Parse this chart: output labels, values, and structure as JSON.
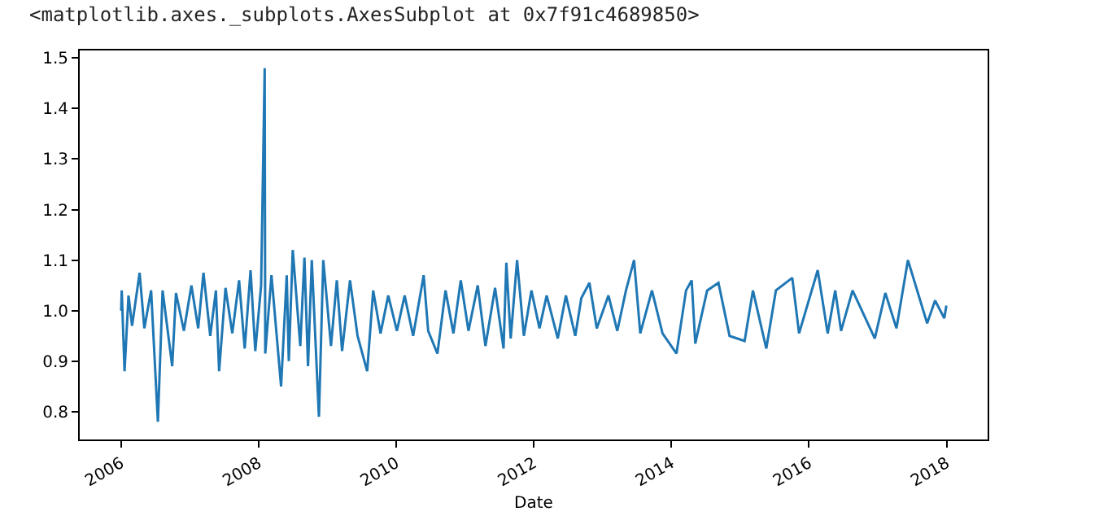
{
  "chart_data": {
    "type": "line",
    "xlabel": "Date",
    "annotations": [
      "<matplotlib.axes._subplots.AxesSubplot at 0x7f91c4689850>"
    ],
    "x": [
      "2006-01-02",
      "2006-01-05",
      "2006-01-20",
      "2006-02-10",
      "2006-03-01",
      "2006-04-10",
      "2006-05-05",
      "2006-06-10",
      "2006-07-16",
      "2006-08-10",
      "2006-09-30",
      "2006-10-20",
      "2006-12-01",
      "2007-01-10",
      "2007-02-15",
      "2007-03-15",
      "2007-04-20",
      "2007-05-20",
      "2007-06-06",
      "2007-07-10",
      "2007-08-15",
      "2007-09-20",
      "2007-10-20",
      "2007-11-20",
      "2007-12-15",
      "2008-01-15",
      "2008-02-03",
      "2008-02-06",
      "2008-03-10",
      "2008-04-30",
      "2008-05-30",
      "2008-06-10",
      "2008-07-01",
      "2008-08-10",
      "2008-09-01",
      "2008-09-20",
      "2008-10-10",
      "2008-11-17",
      "2008-12-10",
      "2009-01-20",
      "2009-02-20",
      "2009-03-20",
      "2009-05-01",
      "2009-06-10",
      "2009-07-31",
      "2009-09-01",
      "2009-10-10",
      "2009-11-20",
      "2010-01-05",
      "2010-02-15",
      "2010-04-01",
      "2010-05-27",
      "2010-06-20",
      "2010-08-08",
      "2010-09-20",
      "2010-11-01",
      "2010-12-10",
      "2011-01-20",
      "2011-03-10",
      "2011-04-20",
      "2011-06-10",
      "2011-07-25",
      "2011-08-09",
      "2011-09-01",
      "2011-10-05",
      "2011-11-10",
      "2011-12-20",
      "2012-02-01",
      "2012-03-10",
      "2012-05-08",
      "2012-06-20",
      "2012-08-09",
      "2012-09-10",
      "2012-10-23",
      "2012-12-01",
      "2013-02-01",
      "2013-03-20",
      "2013-05-05",
      "2013-06-17",
      "2013-07-20",
      "2013-09-20",
      "2013-11-15",
      "2014-01-28",
      "2014-03-20",
      "2014-04-19",
      "2014-05-08",
      "2014-07-10",
      "2014-09-08",
      "2014-11-06",
      "2015-01-25",
      "2015-03-10",
      "2015-05-20",
      "2015-07-10",
      "2015-10-05",
      "2015-11-10",
      "2016-02-17",
      "2016-04-10",
      "2016-05-20",
      "2016-06-20",
      "2016-08-20",
      "2016-12-16",
      "2017-02-10",
      "2017-04-10",
      "2017-06-10",
      "2017-09-20",
      "2017-11-01",
      "2017-12-20",
      "2017-12-31"
    ],
    "values": [
      1.0,
      1.04,
      0.88,
      1.03,
      0.97,
      1.075,
      0.965,
      1.04,
      0.78,
      1.04,
      0.89,
      1.035,
      0.96,
      1.05,
      0.965,
      1.075,
      0.95,
      1.04,
      0.88,
      1.045,
      0.955,
      1.06,
      0.925,
      1.08,
      0.92,
      1.05,
      1.48,
      0.915,
      1.07,
      0.85,
      1.07,
      0.9,
      1.12,
      0.93,
      1.105,
      0.89,
      1.1,
      0.79,
      1.1,
      0.93,
      1.06,
      0.92,
      1.06,
      0.95,
      0.88,
      1.04,
      0.955,
      1.03,
      0.96,
      1.03,
      0.95,
      1.07,
      0.96,
      0.915,
      1.04,
      0.955,
      1.06,
      0.96,
      1.05,
      0.93,
      1.045,
      0.925,
      1.095,
      0.945,
      1.1,
      0.95,
      1.04,
      0.965,
      1.03,
      0.945,
      1.03,
      0.95,
      1.025,
      1.055,
      0.965,
      1.03,
      0.96,
      1.04,
      1.1,
      0.955,
      1.04,
      0.955,
      0.915,
      1.04,
      1.06,
      0.935,
      1.04,
      1.055,
      0.95,
      0.94,
      1.04,
      0.925,
      1.04,
      1.065,
      0.955,
      1.08,
      0.955,
      1.04,
      0.96,
      1.04,
      0.945,
      1.035,
      0.965,
      1.1,
      0.975,
      1.02,
      0.985,
      1.01
    ],
    "color": "#1f77b4",
    "xlim": [
      "2005-05-27",
      "2018-08-07"
    ],
    "xticks": [
      "2006",
      "2008",
      "2010",
      "2012",
      "2014",
      "2016",
      "2018"
    ],
    "ylim": [
      0.745,
      1.515
    ],
    "yticks": [
      0.8,
      0.9,
      {
        "value": 1,
        "label": "1.0"
      },
      1.1,
      1.2,
      1.3,
      1.4,
      1.5
    ]
  }
}
